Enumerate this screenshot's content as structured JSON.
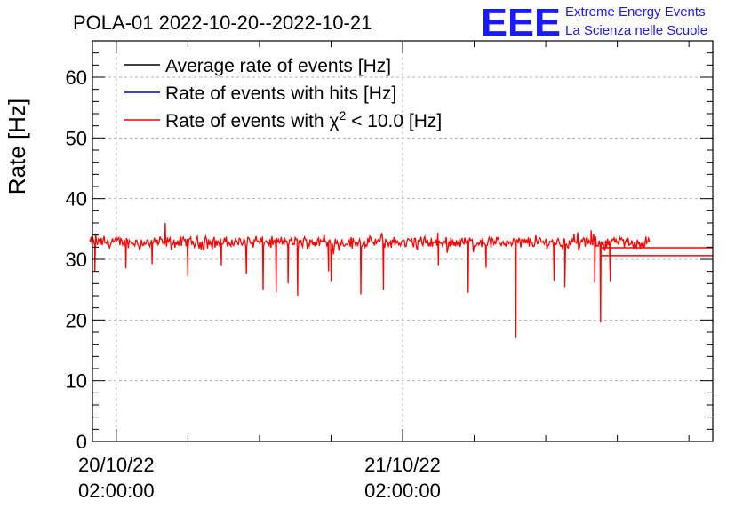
{
  "chart_data": {
    "type": "line",
    "title": "POLA-01 2022-10-20--2022-10-21",
    "ylabel": "Rate [Hz]",
    "xlabel": "",
    "ylim": [
      0,
      66
    ],
    "yticks": [
      0,
      10,
      20,
      30,
      40,
      50,
      60
    ],
    "x_unit": "hours since 2022-10-20 00:00",
    "xlim": [
      0,
      52
    ],
    "xtick_labels": [
      {
        "x": 2,
        "line1": "20/10/22",
        "line2": "02:00:00"
      },
      {
        "x": 26,
        "line1": "21/10/22",
        "line2": "02:00:00"
      }
    ],
    "minor_xticks": [
      8,
      14,
      20,
      32,
      38,
      44,
      50
    ],
    "grid": true,
    "legend": {
      "position": "top-left",
      "entries": [
        {
          "label": "Average rate of events [Hz]",
          "color": "#000000"
        },
        {
          "label": "Rate of events with hits [Hz]",
          "color": "#0000cc"
        },
        {
          "label_prefix": "Rate of events with ",
          "label_symbol": "χ",
          "label_sup": "2",
          "label_suffix": " < 10.0 [Hz]",
          "color": "#ff0000"
        }
      ]
    },
    "series": [
      {
        "name": "Rate of events with χ2 < 10.0 [Hz]",
        "color": "#ff0000",
        "x_start": -0.2,
        "x_end": 46.7,
        "baseline": 32.8,
        "noise": 0.8,
        "dips": [
          {
            "x": 0.2,
            "y": 28.0
          },
          {
            "x": 2.8,
            "y": 28.5
          },
          {
            "x": 5.0,
            "y": 29.2
          },
          {
            "x": 8.0,
            "y": 27.2
          },
          {
            "x": 10.8,
            "y": 29.0
          },
          {
            "x": 12.9,
            "y": 27.6
          },
          {
            "x": 14.3,
            "y": 25.0
          },
          {
            "x": 15.4,
            "y": 24.5
          },
          {
            "x": 16.4,
            "y": 26.0
          },
          {
            "x": 17.2,
            "y": 24.0
          },
          {
            "x": 19.8,
            "y": 28.0
          },
          {
            "x": 20.0,
            "y": 26.4
          },
          {
            "x": 22.5,
            "y": 24.2
          },
          {
            "x": 24.4,
            "y": 25.0
          },
          {
            "x": 29.0,
            "y": 29.0
          },
          {
            "x": 31.5,
            "y": 24.5
          },
          {
            "x": 33.0,
            "y": 28.6
          },
          {
            "x": 35.5,
            "y": 17.0
          },
          {
            "x": 38.7,
            "y": 26.5
          },
          {
            "x": 39.6,
            "y": 25.4
          },
          {
            "x": 42.1,
            "y": 26.2
          },
          {
            "x": 42.6,
            "y": 19.6
          },
          {
            "x": 43.4,
            "y": 26.4
          }
        ],
        "spikes": [
          {
            "x": 6.1,
            "y": 36.0
          },
          {
            "x": 41.8,
            "y": 34.8
          }
        ],
        "tail_segments": [
          {
            "x_from": 42.6,
            "x_to": 52,
            "y": 31.9
          },
          {
            "x_from": 42.6,
            "x_to": 52,
            "y": 30.6
          }
        ]
      }
    ]
  },
  "logo": {
    "big_text": "EEE",
    "line1": "Extreme Energy Events",
    "line2": "La Scienza nelle Scuole"
  }
}
